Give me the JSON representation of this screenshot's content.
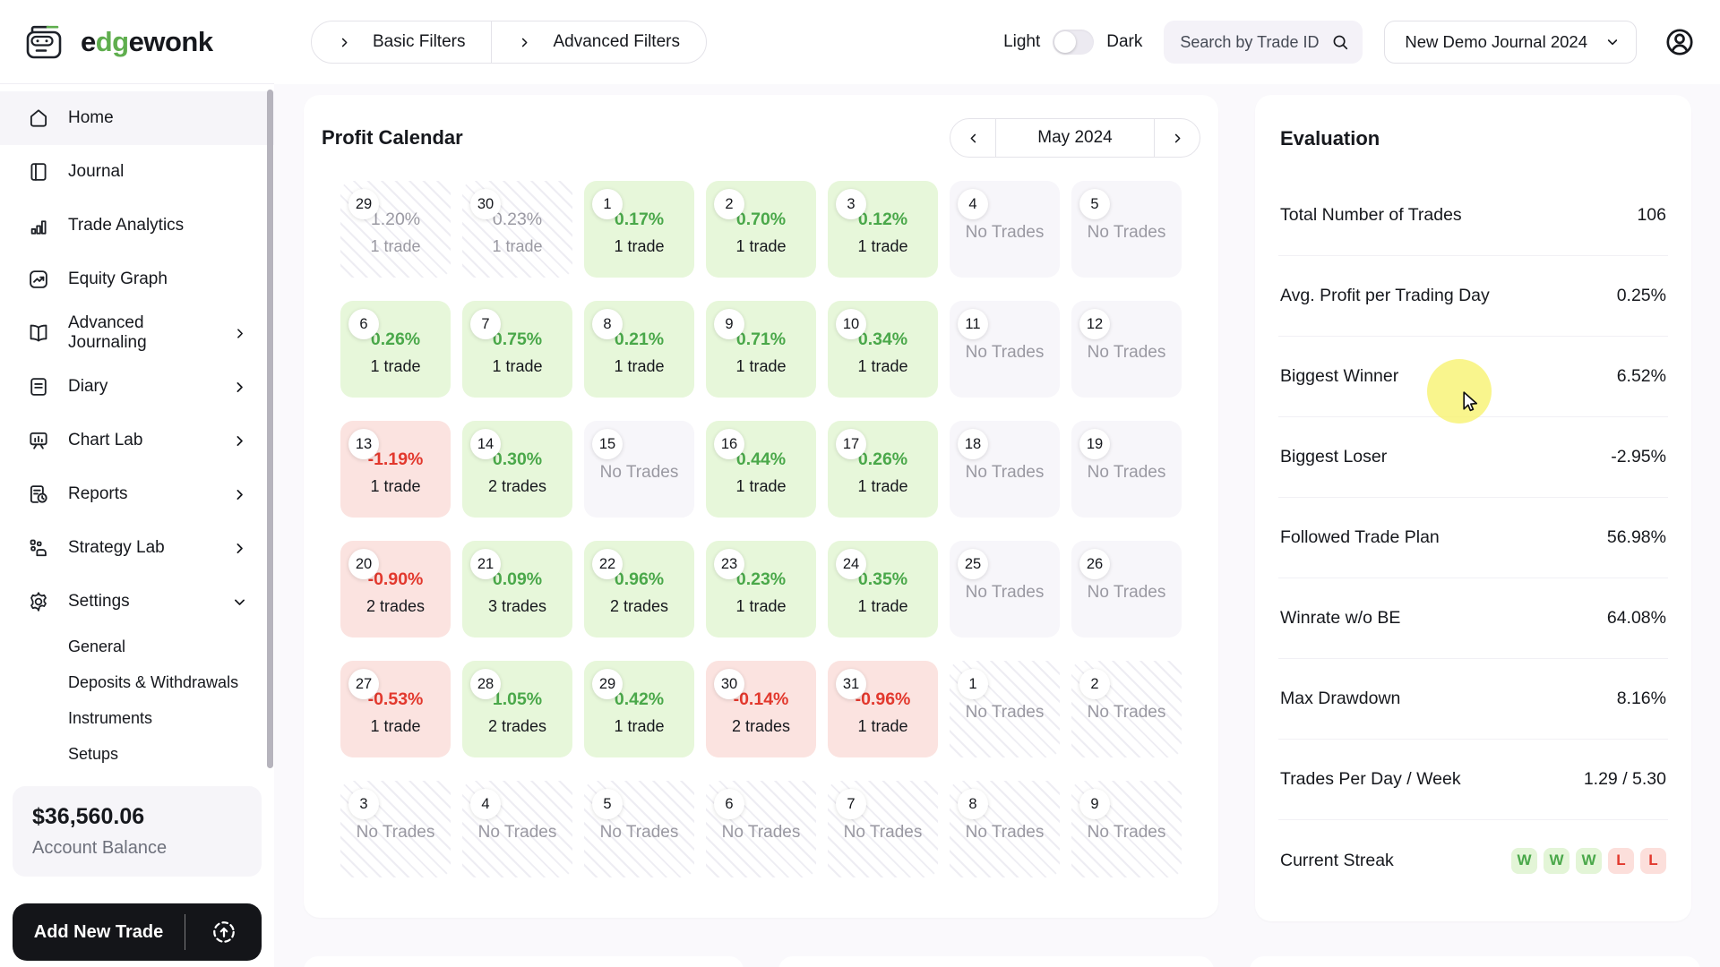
{
  "brand": {
    "name_pre": "e",
    "name_mid": "dg",
    "name_post": "ewonk"
  },
  "colors": {
    "accent_green": "#5fae4e",
    "win_text": "#4aa84a",
    "loss_text": "#e2382d",
    "win_bg": "#e7f7da",
    "loss_bg": "#fbe3e0",
    "streak_win_bg": "#e3f5d7",
    "streak_loss_bg": "#fcdfdb",
    "cursor_highlight": "#f8f370"
  },
  "sidebar": {
    "items": [
      {
        "label": "Home",
        "icon": "home",
        "active": true
      },
      {
        "label": "Journal",
        "icon": "journal"
      },
      {
        "label": "Trade Analytics",
        "icon": "analytics"
      },
      {
        "label": "Equity Graph",
        "icon": "equity"
      },
      {
        "label": "Advanced Journaling",
        "icon": "advbook",
        "chevron": "right"
      },
      {
        "label": "Diary",
        "icon": "diary",
        "chevron": "right"
      },
      {
        "label": "Chart Lab",
        "icon": "chartlab",
        "chevron": "right"
      },
      {
        "label": "Reports",
        "icon": "reports",
        "chevron": "right"
      },
      {
        "label": "Strategy Lab",
        "icon": "strategy",
        "chevron": "right"
      },
      {
        "label": "Settings",
        "icon": "settings",
        "chevron": "down",
        "expanded": true
      }
    ],
    "settings_subitems": [
      "General",
      "Deposits & Withdrawals",
      "Instruments",
      "Setups"
    ],
    "account_balance": {
      "amount": "$36,560.06",
      "label": "Account Balance"
    },
    "add_trade_label": "Add New Trade"
  },
  "topbar": {
    "filters": [
      {
        "label": "Basic Filters"
      },
      {
        "label": "Advanced Filters"
      }
    ],
    "theme_toggle": {
      "left": "Light",
      "right": "Dark",
      "state": "light"
    },
    "search_placeholder": "Search by Trade ID",
    "journal_select": "New Demo Journal 2024"
  },
  "calendar": {
    "title": "Profit Calendar",
    "month": "May 2024",
    "no_trades_label": "No Trades",
    "cells": [
      {
        "day": "29",
        "type": "out-data",
        "pct": "1.20%",
        "trades": "1 trade"
      },
      {
        "day": "30",
        "type": "out-data",
        "pct": "0.23%",
        "trades": "1 trade"
      },
      {
        "day": "1",
        "type": "win",
        "pct": "0.17%",
        "trades": "1 trade"
      },
      {
        "day": "2",
        "type": "win",
        "pct": "0.70%",
        "trades": "1 trade"
      },
      {
        "day": "3",
        "type": "win",
        "pct": "0.12%",
        "trades": "1 trade"
      },
      {
        "day": "4",
        "type": "none"
      },
      {
        "day": "5",
        "type": "none"
      },
      {
        "day": "6",
        "type": "win",
        "pct": "0.26%",
        "trades": "1 trade"
      },
      {
        "day": "7",
        "type": "win",
        "pct": "0.75%",
        "trades": "1 trade"
      },
      {
        "day": "8",
        "type": "win",
        "pct": "0.21%",
        "trades": "1 trade"
      },
      {
        "day": "9",
        "type": "win",
        "pct": "0.71%",
        "trades": "1 trade"
      },
      {
        "day": "10",
        "type": "win",
        "pct": "0.34%",
        "trades": "1 trade"
      },
      {
        "day": "11",
        "type": "none"
      },
      {
        "day": "12",
        "type": "none"
      },
      {
        "day": "13",
        "type": "loss",
        "pct": "-1.19%",
        "trades": "1 trade"
      },
      {
        "day": "14",
        "type": "win",
        "pct": "0.30%",
        "trades": "2 trades"
      },
      {
        "day": "15",
        "type": "none"
      },
      {
        "day": "16",
        "type": "win",
        "pct": "0.44%",
        "trades": "1 trade"
      },
      {
        "day": "17",
        "type": "win",
        "pct": "0.26%",
        "trades": "1 trade"
      },
      {
        "day": "18",
        "type": "none"
      },
      {
        "day": "19",
        "type": "none"
      },
      {
        "day": "20",
        "type": "loss",
        "pct": "-0.90%",
        "trades": "2 trades"
      },
      {
        "day": "21",
        "type": "win",
        "pct": "0.09%",
        "trades": "3 trades"
      },
      {
        "day": "22",
        "type": "win",
        "pct": "0.96%",
        "trades": "2 trades"
      },
      {
        "day": "23",
        "type": "win",
        "pct": "0.23%",
        "trades": "1 trade"
      },
      {
        "day": "24",
        "type": "win",
        "pct": "0.35%",
        "trades": "1 trade"
      },
      {
        "day": "25",
        "type": "none"
      },
      {
        "day": "26",
        "type": "none"
      },
      {
        "day": "27",
        "type": "loss",
        "pct": "-0.53%",
        "trades": "1 trade"
      },
      {
        "day": "28",
        "type": "win",
        "pct": "1.05%",
        "trades": "2 trades"
      },
      {
        "day": "29",
        "type": "win",
        "pct": "0.42%",
        "trades": "1 trade"
      },
      {
        "day": "30",
        "type": "loss",
        "pct": "-0.14%",
        "trades": "2 trades"
      },
      {
        "day": "31",
        "type": "loss",
        "pct": "-0.96%",
        "trades": "1 trade"
      },
      {
        "day": "1",
        "type": "out-none"
      },
      {
        "day": "2",
        "type": "out-none"
      },
      {
        "day": "3",
        "type": "out-none"
      },
      {
        "day": "4",
        "type": "out-none"
      },
      {
        "day": "5",
        "type": "out-none"
      },
      {
        "day": "6",
        "type": "out-none"
      },
      {
        "day": "7",
        "type": "out-none"
      },
      {
        "day": "8",
        "type": "out-none"
      },
      {
        "day": "9",
        "type": "out-none"
      }
    ]
  },
  "evaluation": {
    "title": "Evaluation",
    "rows": [
      {
        "label": "Total Number of Trades",
        "value": "106"
      },
      {
        "label": "Avg. Profit per Trading Day",
        "value": "0.25%"
      },
      {
        "label": "Biggest Winner",
        "value": "6.52%"
      },
      {
        "label": "Biggest Loser",
        "value": "-2.95%"
      },
      {
        "label": "Followed Trade Plan",
        "value": "56.98%"
      },
      {
        "label": "Winrate w/o BE",
        "value": "64.08%"
      },
      {
        "label": "Max Drawdown",
        "value": "8.16%"
      },
      {
        "label": "Trades Per Day / Week",
        "value": "1.29 / 5.30"
      }
    ],
    "streak": {
      "label": "Current Streak",
      "values": [
        "W",
        "W",
        "W",
        "L",
        "L"
      ]
    }
  }
}
